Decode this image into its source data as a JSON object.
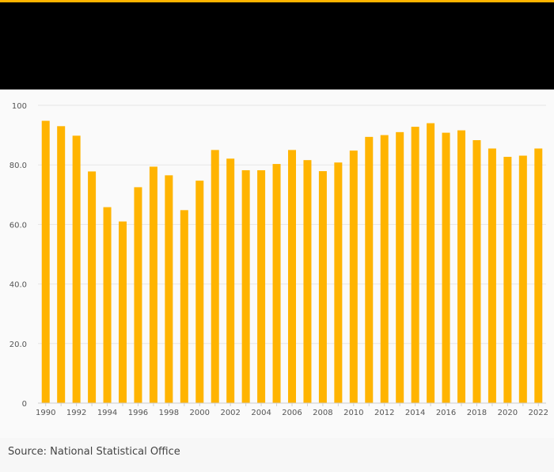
{
  "footer": {
    "source": "Source: National Statistical Office"
  },
  "colors": {
    "bar": "#ffb400",
    "header": "#000000",
    "grid": "#e6e6e6",
    "accent": "#ffb400"
  },
  "chart_data": {
    "type": "bar",
    "title": "",
    "xlabel": "",
    "ylabel": "",
    "ylim": [
      0,
      100
    ],
    "yticks": [
      0,
      20,
      40,
      60,
      80,
      100
    ],
    "ytick_labels": [
      "0",
      "20.0",
      "40.0",
      "60.0",
      "80.0",
      "100"
    ],
    "grid": true,
    "categories": [
      "1990",
      "1991",
      "1992",
      "1993",
      "1994",
      "1995",
      "1996",
      "1997",
      "1998",
      "1999",
      "2000",
      "2001",
      "2002",
      "2003",
      "2004",
      "2005",
      "2006",
      "2007",
      "2008",
      "2009",
      "2010",
      "2011",
      "2012",
      "2013",
      "2014",
      "2015",
      "2016",
      "2017",
      "2018",
      "2019",
      "2020",
      "2021",
      "2022"
    ],
    "xtick_labels": [
      "1990",
      "1992",
      "1994",
      "1996",
      "1998",
      "2000",
      "2002",
      "2004",
      "2006",
      "2008",
      "2010",
      "2012",
      "2014",
      "2016",
      "2018",
      "2020",
      "2022"
    ],
    "values": [
      94.8,
      93.0,
      89.8,
      77.8,
      65.8,
      61.0,
      72.5,
      79.4,
      76.5,
      64.8,
      74.7,
      85.0,
      82.1,
      78.2,
      78.2,
      80.3,
      85.0,
      81.6,
      77.9,
      80.8,
      84.8,
      89.4,
      90.0,
      91.0,
      92.8,
      94.0,
      90.8,
      91.6,
      88.3,
      85.5,
      82.7,
      83.1,
      85.5
    ]
  }
}
